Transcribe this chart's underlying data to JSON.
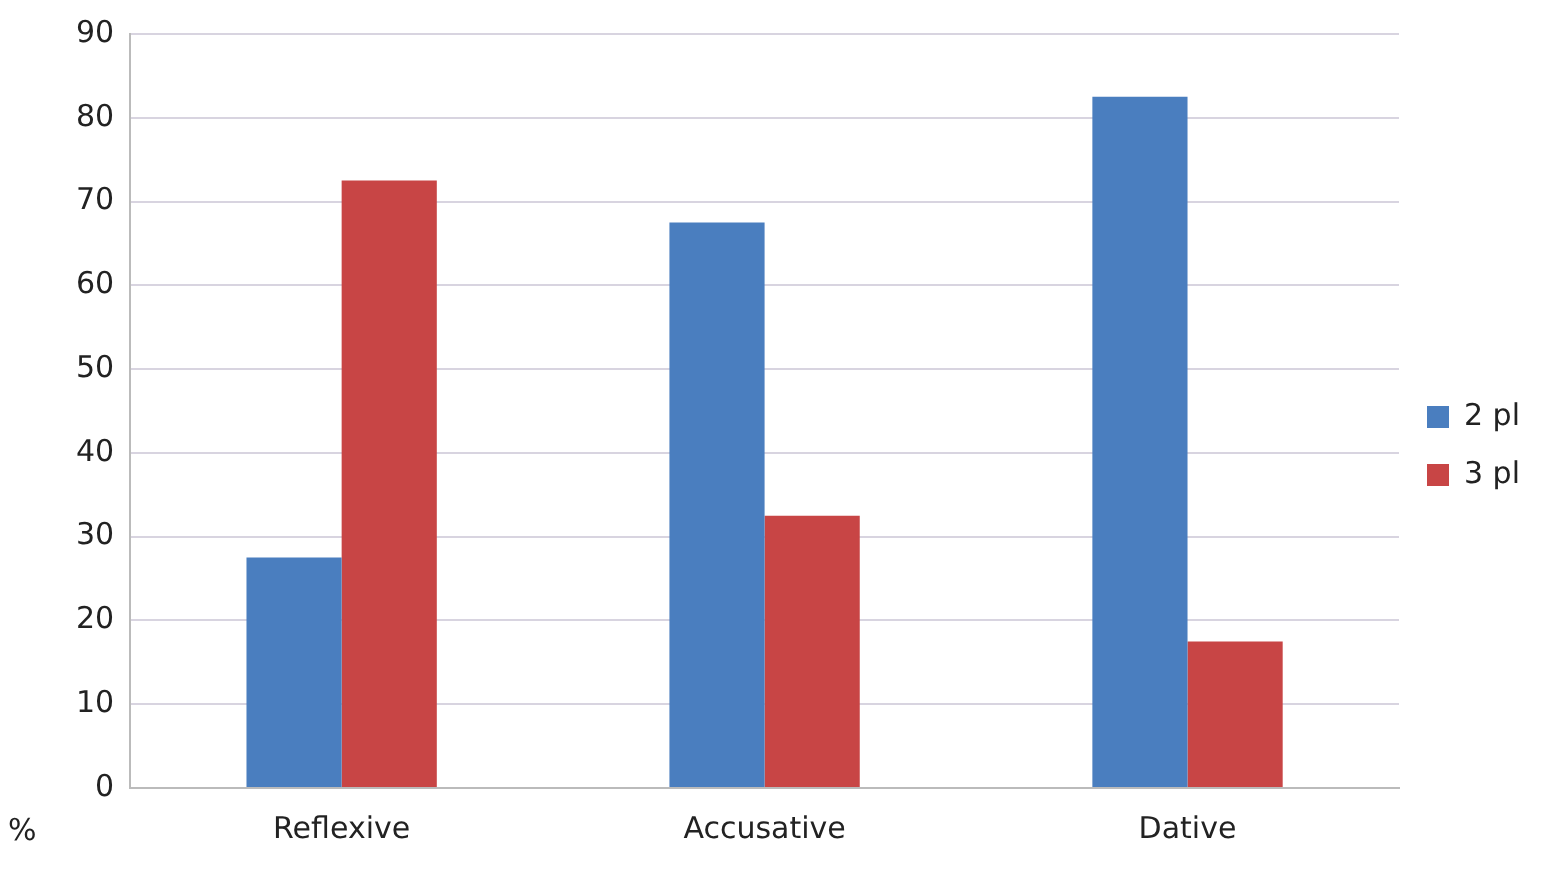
{
  "chart_data": {
    "type": "bar",
    "ylabel": "%",
    "categories": [
      "Reflexive",
      "Accusative",
      "Dative"
    ],
    "series": [
      {
        "name": "2 pl",
        "color": "#4a7ebf",
        "values": [
          27.5,
          67.5,
          82.5
        ]
      },
      {
        "name": "3 pl",
        "color": "#c84545",
        "values": [
          72.5,
          32.5,
          17.5
        ]
      }
    ],
    "ylim": [
      0,
      90
    ],
    "yticks": [
      0,
      10,
      20,
      30,
      40,
      50,
      60,
      70,
      80,
      90
    ],
    "grid": "y",
    "legend": "right"
  }
}
